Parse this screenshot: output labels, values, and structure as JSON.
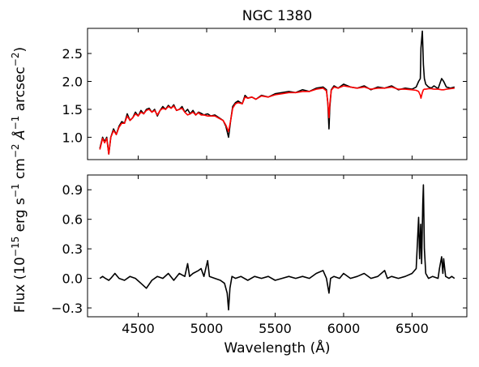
{
  "chart_data": [
    {
      "type": "line",
      "title": "NGC 1380",
      "xlabel": "",
      "ylabel": "",
      "xlim": [
        4130,
        6900
      ],
      "ylim": [
        0.6,
        2.95
      ],
      "yticks": [
        1.0,
        1.5,
        2.0,
        2.5
      ],
      "yticklabels": [
        "1.0",
        "1.5",
        "2.0",
        "2.5"
      ],
      "series": [
        {
          "color": "#000000",
          "x": [
            4220,
            4240,
            4255,
            4270,
            4285,
            4300,
            4320,
            4340,
            4360,
            4380,
            4400,
            4420,
            4440,
            4460,
            4480,
            4500,
            4520,
            4540,
            4560,
            4580,
            4600,
            4620,
            4640,
            4660,
            4680,
            4700,
            4720,
            4740,
            4760,
            4780,
            4800,
            4820,
            4840,
            4861,
            4880,
            4900,
            4920,
            4940,
            4959,
            4980,
            5007,
            5030,
            5060,
            5090,
            5120,
            5140,
            5160,
            5175,
            5190,
            5210,
            5230,
            5260,
            5280,
            5300,
            5330,
            5360,
            5400,
            5450,
            5500,
            5550,
            5600,
            5650,
            5700,
            5750,
            5800,
            5850,
            5875,
            5885,
            5893,
            5900,
            5910,
            5930,
            5960,
            6000,
            6050,
            6100,
            6150,
            6200,
            6250,
            6300,
            6350,
            6400,
            6450,
            6500,
            6530,
            6548,
            6560,
            6565,
            6575,
            6583,
            6590,
            6600,
            6620,
            6640,
            6660,
            6690,
            6716,
            6731,
            6750,
            6780,
            6810
          ],
          "y": [
            0.8,
            1.0,
            0.92,
            1.0,
            0.7,
            1.0,
            1.15,
            1.05,
            1.2,
            1.28,
            1.25,
            1.42,
            1.3,
            1.35,
            1.45,
            1.38,
            1.48,
            1.42,
            1.5,
            1.52,
            1.45,
            1.5,
            1.38,
            1.48,
            1.55,
            1.5,
            1.57,
            1.52,
            1.58,
            1.48,
            1.5,
            1.55,
            1.45,
            1.5,
            1.42,
            1.48,
            1.4,
            1.45,
            1.43,
            1.4,
            1.42,
            1.38,
            1.4,
            1.35,
            1.3,
            1.2,
            1.0,
            1.3,
            1.55,
            1.62,
            1.65,
            1.6,
            1.75,
            1.7,
            1.72,
            1.68,
            1.75,
            1.72,
            1.78,
            1.8,
            1.82,
            1.8,
            1.85,
            1.82,
            1.88,
            1.9,
            1.85,
            1.6,
            1.15,
            1.55,
            1.85,
            1.92,
            1.88,
            1.95,
            1.9,
            1.88,
            1.92,
            1.85,
            1.9,
            1.88,
            1.92,
            1.85,
            1.88,
            1.86,
            1.9,
            2.0,
            2.05,
            2.6,
            2.9,
            2.3,
            2.05,
            1.95,
            1.9,
            1.88,
            1.92,
            1.87,
            2.05,
            2.0,
            1.9,
            1.88,
            1.9
          ]
        },
        {
          "color": "#ff0000",
          "x": [
            4220,
            4240,
            4255,
            4270,
            4285,
            4300,
            4320,
            4340,
            4360,
            4380,
            4400,
            4420,
            4440,
            4460,
            4480,
            4500,
            4520,
            4540,
            4560,
            4580,
            4600,
            4620,
            4640,
            4660,
            4680,
            4700,
            4720,
            4740,
            4760,
            4780,
            4800,
            4820,
            4840,
            4861,
            4880,
            4900,
            4920,
            4940,
            4959,
            4980,
            5007,
            5030,
            5060,
            5090,
            5120,
            5140,
            5160,
            5175,
            5190,
            5210,
            5230,
            5260,
            5280,
            5300,
            5330,
            5360,
            5400,
            5450,
            5500,
            5550,
            5600,
            5650,
            5700,
            5750,
            5800,
            5850,
            5875,
            5885,
            5893,
            5900,
            5910,
            5930,
            5960,
            6000,
            6050,
            6100,
            6150,
            6200,
            6250,
            6300,
            6350,
            6400,
            6450,
            6500,
            6530,
            6548,
            6560,
            6565,
            6575,
            6583,
            6590,
            6600,
            6620,
            6640,
            6660,
            6690,
            6716,
            6731,
            6750,
            6780,
            6810
          ],
          "y": [
            0.78,
            0.98,
            0.9,
            0.98,
            0.7,
            1.0,
            1.12,
            1.05,
            1.18,
            1.25,
            1.25,
            1.38,
            1.3,
            1.35,
            1.42,
            1.38,
            1.45,
            1.42,
            1.48,
            1.5,
            1.45,
            1.48,
            1.4,
            1.48,
            1.52,
            1.5,
            1.55,
            1.52,
            1.56,
            1.48,
            1.5,
            1.52,
            1.45,
            1.4,
            1.42,
            1.45,
            1.4,
            1.44,
            1.4,
            1.4,
            1.38,
            1.38,
            1.38,
            1.34,
            1.3,
            1.22,
            1.1,
            1.3,
            1.52,
            1.6,
            1.62,
            1.6,
            1.72,
            1.7,
            1.72,
            1.68,
            1.74,
            1.72,
            1.76,
            1.78,
            1.8,
            1.8,
            1.82,
            1.82,
            1.86,
            1.88,
            1.83,
            1.62,
            1.35,
            1.6,
            1.84,
            1.9,
            1.88,
            1.92,
            1.9,
            1.88,
            1.9,
            1.86,
            1.88,
            1.88,
            1.9,
            1.86,
            1.86,
            1.85,
            1.84,
            1.82,
            1.75,
            1.7,
            1.8,
            1.85,
            1.86,
            1.86,
            1.87,
            1.87,
            1.86,
            1.86,
            1.85,
            1.85,
            1.86,
            1.87,
            1.88
          ]
        }
      ]
    },
    {
      "type": "line",
      "title": "",
      "xlabel": "Wavelength (Å)",
      "ylabel": "",
      "xlim": [
        4130,
        6900
      ],
      "ylim": [
        -0.39,
        1.05
      ],
      "xticks": [
        4500,
        5000,
        5500,
        6000,
        6500
      ],
      "xticklabels": [
        "4500",
        "5000",
        "5500",
        "6000",
        "6500"
      ],
      "yticks": [
        -0.3,
        0.0,
        0.3,
        0.6,
        0.9
      ],
      "yticklabels": [
        "−0.3",
        "0.0",
        "0.3",
        "0.6",
        "0.9"
      ],
      "series": [
        {
          "color": "#000000",
          "x": [
            4220,
            4240,
            4260,
            4285,
            4300,
            4330,
            4360,
            4400,
            4440,
            4480,
            4520,
            4560,
            4600,
            4640,
            4680,
            4720,
            4760,
            4800,
            4840,
            4861,
            4875,
            4900,
            4940,
            4959,
            4980,
            5007,
            5020,
            5060,
            5100,
            5130,
            5150,
            5160,
            5170,
            5185,
            5210,
            5250,
            5300,
            5350,
            5400,
            5450,
            5500,
            5550,
            5600,
            5650,
            5700,
            5750,
            5800,
            5850,
            5875,
            5893,
            5905,
            5930,
            5970,
            6000,
            6050,
            6100,
            6150,
            6200,
            6250,
            6300,
            6320,
            6350,
            6400,
            6450,
            6500,
            6530,
            6548,
            6555,
            6563,
            6570,
            6578,
            6583,
            6590,
            6600,
            6620,
            6650,
            6690,
            6700,
            6716,
            6725,
            6731,
            6745,
            6770,
            6790,
            6810
          ],
          "y": [
            0.0,
            0.02,
            0.0,
            -0.02,
            0.0,
            0.05,
            0.0,
            -0.02,
            0.02,
            0.0,
            -0.05,
            -0.1,
            -0.02,
            0.02,
            0.0,
            0.05,
            -0.02,
            0.05,
            0.02,
            0.15,
            0.02,
            0.05,
            0.08,
            0.1,
            0.02,
            0.18,
            0.02,
            0.0,
            -0.02,
            -0.05,
            -0.15,
            -0.32,
            -0.1,
            0.02,
            0.0,
            0.02,
            -0.02,
            0.02,
            0.0,
            0.02,
            -0.02,
            0.0,
            0.02,
            0.0,
            0.02,
            0.0,
            0.05,
            0.08,
            0.0,
            -0.15,
            0.0,
            0.02,
            0.0,
            0.05,
            0.0,
            0.02,
            0.05,
            0.0,
            0.02,
            0.08,
            0.0,
            0.02,
            0.0,
            0.02,
            0.05,
            0.1,
            0.62,
            0.2,
            0.55,
            0.15,
            0.75,
            0.95,
            0.3,
            0.05,
            0.0,
            0.02,
            0.0,
            0.1,
            0.22,
            0.05,
            0.2,
            0.02,
            0.0,
            0.02,
            0.0
          ]
        }
      ]
    }
  ],
  "shared": {
    "ylabel_parts": [
      "Flux (10",
      "−15",
      " erg s",
      "−1",
      " cm",
      "−2",
      " Å",
      "−1",
      " arcsec",
      "−2",
      ")"
    ]
  }
}
